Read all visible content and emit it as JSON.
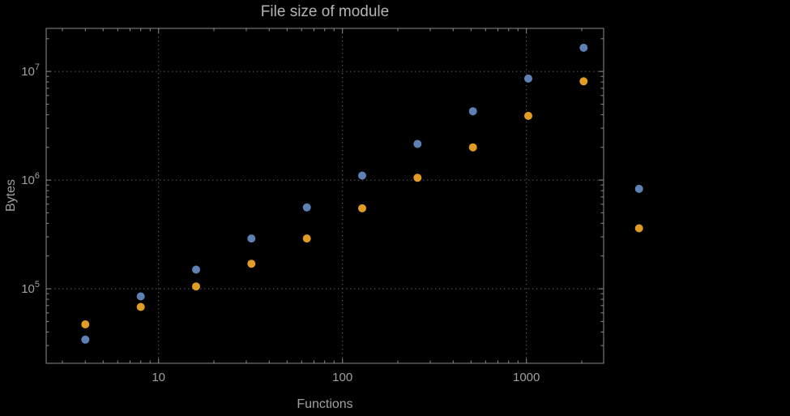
{
  "page": {
    "background": "#000000"
  },
  "style": {
    "frame_color": "#8c8c8c",
    "tick_color": "#8c8c8c",
    "grid_color": "#5c5c5c",
    "text_color": "#a0a0a0",
    "title_color": "#b5b5b5"
  },
  "chart_data": {
    "type": "scatter",
    "title": "File size of module",
    "xlabel": "Functions",
    "ylabel": "Bytes",
    "x_scale": "log",
    "y_scale": "log",
    "xlim": [
      2.45,
      2630
    ],
    "ylim": [
      20600,
      24900000
    ],
    "grid": "dotted lines at decade ticks",
    "legend": "none",
    "x_ticks": [
      10,
      100,
      1000
    ],
    "x_tick_labels": [
      "10",
      "100",
      "1000"
    ],
    "y_ticks": [
      100000,
      1000000,
      10000000
    ],
    "y_tick_labels": [
      "10^5",
      "10^6",
      "10^7"
    ],
    "series": [
      {
        "name": "blue",
        "color": "#5e81b5",
        "points": [
          [
            4,
            34000
          ],
          [
            8,
            85000
          ],
          [
            16,
            150000
          ],
          [
            32,
            290000
          ],
          [
            64,
            560000
          ],
          [
            128,
            1100000
          ],
          [
            256,
            2150000
          ],
          [
            512,
            4300000
          ],
          [
            1024,
            8600000
          ],
          [
            2048,
            16500000
          ],
          [
            4096,
            830000
          ]
        ]
      },
      {
        "name": "orange",
        "color": "#e19c24",
        "points": [
          [
            4,
            47000
          ],
          [
            8,
            68000
          ],
          [
            16,
            105000
          ],
          [
            32,
            170000
          ],
          [
            64,
            290000
          ],
          [
            128,
            550000
          ],
          [
            256,
            1050000
          ],
          [
            512,
            2000000
          ],
          [
            1024,
            3900000
          ],
          [
            2048,
            8100000
          ],
          [
            4096,
            360000
          ]
        ]
      }
    ]
  }
}
